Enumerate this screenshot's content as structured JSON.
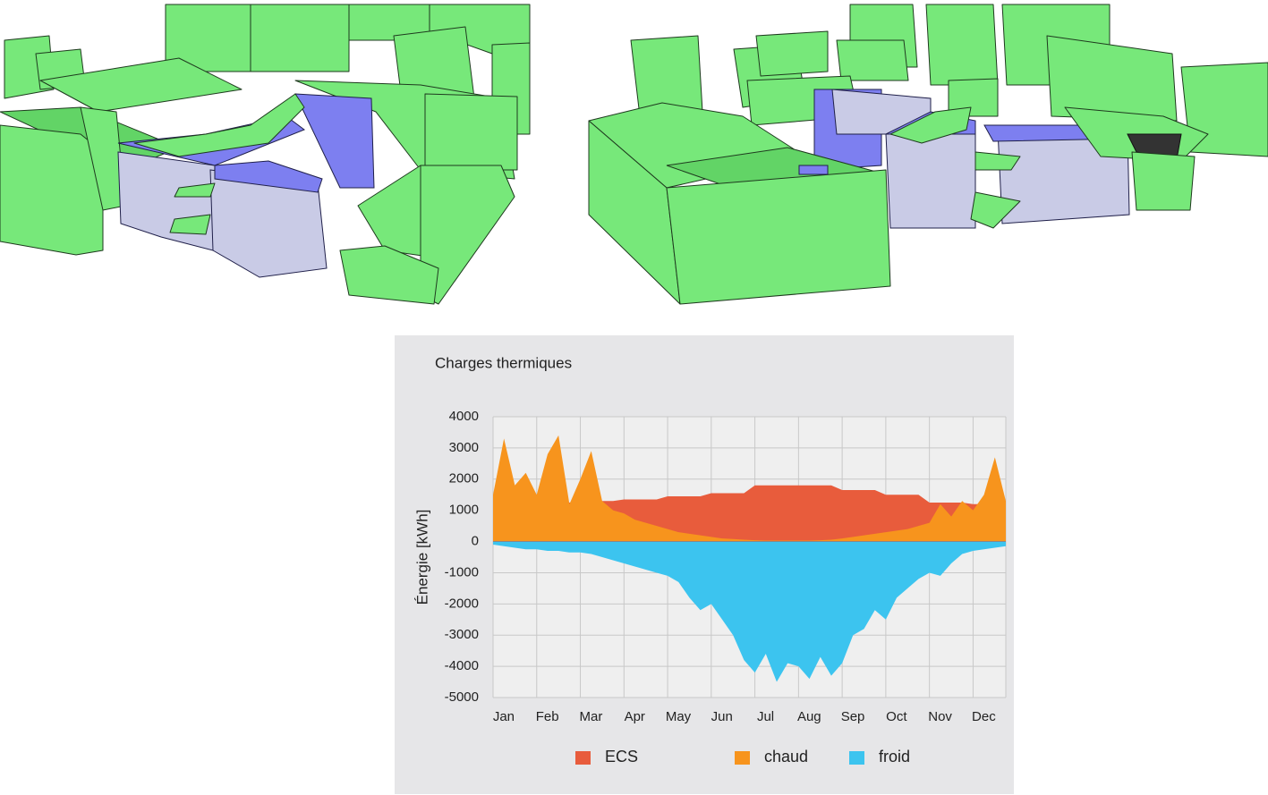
{
  "chart_data": {
    "type": "area",
    "title": "Charges thermiques",
    "y_label": "Énergie [kWh]",
    "categories": [
      "Jan",
      null,
      null,
      null,
      "Feb",
      null,
      null,
      null,
      "Mar",
      null,
      null,
      null,
      "Apr",
      null,
      null,
      null,
      "May",
      null,
      null,
      null,
      "Jun",
      null,
      null,
      null,
      "Jul",
      null,
      null,
      null,
      "Aug",
      null,
      null,
      null,
      "Sep",
      null,
      null,
      null,
      "Oct",
      null,
      null,
      null,
      "Nov",
      null,
      null,
      null,
      "Dec",
      null,
      null,
      null
    ],
    "series": [
      {
        "name": "ECS",
        "color": "#e85c3c",
        "values": [
          1200,
          1200,
          1200,
          1200,
          1250,
          1250,
          1250,
          1250,
          1300,
          1300,
          1300,
          1300,
          1350,
          1350,
          1350,
          1350,
          1450,
          1450,
          1450,
          1450,
          1550,
          1550,
          1550,
          1550,
          1800,
          1800,
          1800,
          1800,
          1800,
          1800,
          1800,
          1800,
          1650,
          1650,
          1650,
          1650,
          1500,
          1500,
          1500,
          1500,
          1250,
          1250,
          1250,
          1250,
          1200,
          1200,
          1200,
          1200
        ]
      },
      {
        "name": "chaud",
        "color": "#f7941d",
        "values": [
          1500,
          3300,
          1800,
          2200,
          1500,
          2800,
          3400,
          1200,
          2000,
          2900,
          1300,
          1000,
          900,
          700,
          600,
          500,
          400,
          300,
          250,
          200,
          150,
          100,
          80,
          60,
          40,
          30,
          30,
          30,
          30,
          30,
          40,
          60,
          100,
          150,
          200,
          250,
          300,
          350,
          400,
          500,
          600,
          1200,
          800,
          1300,
          1000,
          1500,
          2700,
          1300
        ]
      },
      {
        "name": "froid",
        "color": "#3cc4ef",
        "values": [
          -100,
          -150,
          -200,
          -250,
          -250,
          -300,
          -300,
          -350,
          -350,
          -400,
          -500,
          -600,
          -700,
          -800,
          -900,
          -1000,
          -1100,
          -1300,
          -1800,
          -2200,
          -2000,
          -2500,
          -3000,
          -3800,
          -4200,
          -3600,
          -4500,
          -3900,
          -4000,
          -4400,
          -3700,
          -4300,
          -3900,
          -3000,
          -2800,
          -2200,
          -2500,
          -1800,
          -1500,
          -1200,
          -1000,
          -1100,
          -700,
          -400,
          -300,
          -250,
          -200,
          -150
        ]
      }
    ],
    "ylim": [
      -5000,
      4000
    ],
    "yticks": [
      4000,
      3000,
      2000,
      1000,
      0,
      -1000,
      -2000,
      -3000,
      -4000,
      -5000
    ],
    "grid": true,
    "legend": "bottom"
  }
}
